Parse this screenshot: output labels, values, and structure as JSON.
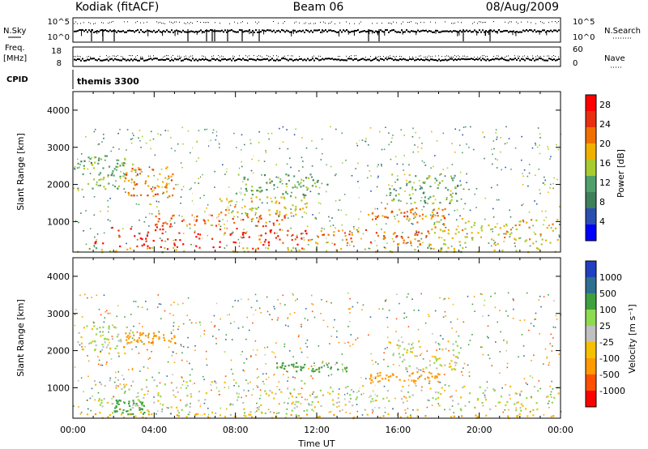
{
  "header": {
    "station": "Kodiak (fitACF)",
    "beam": "Beam 06",
    "date": "08/Aug/2009"
  },
  "status_panels": {
    "nsky_label": "N.Sky",
    "nsky_ticks": [
      "10^5",
      "10^0"
    ],
    "nsearch_label": "N.Search",
    "nsearch_ticks": [
      "10^5",
      "10^0"
    ],
    "freq_label_1": "Freq.",
    "freq_label_2": "[MHz]",
    "freq_ticks": [
      "18",
      "8"
    ],
    "nave_label": "Nave",
    "nave_ticks": [
      "60",
      "0"
    ],
    "cpid_label": "CPID",
    "cpid_value": "themis 3300"
  },
  "colors": {
    "power": [
      "#0000ff",
      "#2a4fb0",
      "#3f7f5a",
      "#4fa06a",
      "#a8cc30",
      "#f0b000",
      "#f07000",
      "#e83010",
      "#ff0000"
    ],
    "velocity": [
      "#ff0000",
      "#ff5000",
      "#ff9a00",
      "#f5c000",
      "#c0c0c0",
      "#8fdb50",
      "#3fa040",
      "#2f6f90",
      "#2040c0"
    ]
  },
  "chart_data": [
    {
      "type": "heatmap",
      "name": "power",
      "xlabel": "Time UT",
      "ylabel": "Slant Range [km]",
      "colorbar_label": "Power [dB]",
      "xticks": [
        "00:00",
        "04:00",
        "08:00",
        "12:00",
        "16:00",
        "20:00",
        "00:00"
      ],
      "xlim_hours": [
        0,
        24
      ],
      "yticks": [
        1000,
        2000,
        3000,
        4000
      ],
      "ylim_km": [
        180,
        4500
      ],
      "colorbar_ticks": [
        4,
        8,
        12,
        16,
        20,
        24,
        28
      ],
      "colorbar_range": [
        0,
        30
      ],
      "regions": [
        {
          "t0": 1.0,
          "t1": 11.5,
          "r0": 280,
          "r1": 900,
          "level": 28
        },
        {
          "t0": 4.0,
          "t1": 10.5,
          "r0": 900,
          "r1": 1250,
          "level": 24
        },
        {
          "t0": 11.5,
          "t1": 17.5,
          "r0": 400,
          "r1": 800,
          "level": 22
        },
        {
          "t0": 17.5,
          "t1": 24.0,
          "r0": 400,
          "r1": 1100,
          "level": 18
        },
        {
          "t0": 14.5,
          "t1": 18.5,
          "r0": 1000,
          "r1": 1400,
          "level": 22
        },
        {
          "t0": 2.5,
          "t1": 5.0,
          "r0": 1700,
          "r1": 2500,
          "level": 22
        },
        {
          "t0": 0.2,
          "t1": 3.0,
          "r0": 1900,
          "r1": 2800,
          "level": 12
        },
        {
          "t0": 7.0,
          "t1": 11.5,
          "r0": 1200,
          "r1": 1700,
          "level": 18
        },
        {
          "t0": 15.5,
          "t1": 19.0,
          "r0": 1500,
          "r1": 2300,
          "level": 12
        },
        {
          "t0": 8.0,
          "t1": 12.5,
          "r0": 1700,
          "r1": 2300,
          "level": 12
        },
        {
          "t0": 0.0,
          "t1": 24.0,
          "r0": 200,
          "r1": 320,
          "level": 16
        }
      ]
    },
    {
      "type": "heatmap",
      "name": "velocity",
      "xlabel": "Time UT",
      "ylabel": "Slant Range [km]",
      "colorbar_label": "Velocity [m s⁻¹]",
      "xticks": [
        "00:00",
        "04:00",
        "08:00",
        "12:00",
        "16:00",
        "20:00",
        "00:00"
      ],
      "xlim_hours": [
        0,
        24
      ],
      "yticks": [
        1000,
        2000,
        3000,
        4000
      ],
      "ylim_km": [
        180,
        4500
      ],
      "colorbar_ticks": [
        "1000",
        "500",
        "100",
        "25",
        "-25",
        "-100",
        "-500",
        "-1000"
      ],
      "regions": [
        {
          "t0": 1.0,
          "t1": 11.5,
          "r0": 280,
          "r1": 1250,
          "level": 0
        },
        {
          "t0": 11.5,
          "t1": 24.0,
          "r0": 400,
          "r1": 1100,
          "level": 0
        },
        {
          "t0": 14.5,
          "t1": 18.0,
          "r0": 1150,
          "r1": 1450,
          "level": -200
        },
        {
          "t0": 10.0,
          "t1": 13.5,
          "r0": 1450,
          "r1": 1700,
          "level": 150
        },
        {
          "t0": 2.5,
          "t1": 5.0,
          "r0": 2200,
          "r1": 2500,
          "level": -200
        },
        {
          "t0": 0.2,
          "t1": 3.0,
          "r0": 1900,
          "r1": 2700,
          "level": 0
        },
        {
          "t0": 2.0,
          "t1": 3.5,
          "r0": 300,
          "r1": 700,
          "level": 150
        },
        {
          "t0": 15.5,
          "t1": 19.0,
          "r0": 1500,
          "r1": 2300,
          "level": 0
        },
        {
          "t0": 0.0,
          "t1": 24.0,
          "r0": 200,
          "r1": 320,
          "level": -100
        }
      ]
    }
  ]
}
